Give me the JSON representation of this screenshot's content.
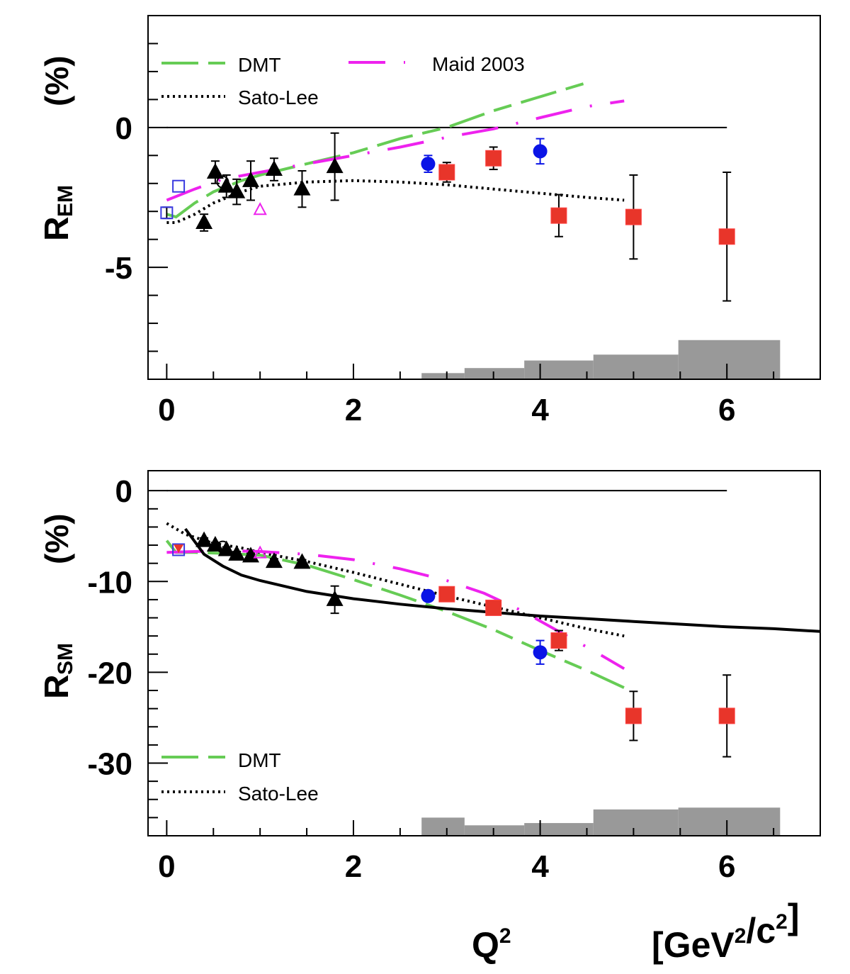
{
  "chart_data": [
    {
      "type": "scatter",
      "panel": "top",
      "ylabel_main": "R",
      "ylabel_sub": "EM",
      "ylabel_unit": "(%)",
      "xlabel": "",
      "xlim": [
        -0.2,
        7.0
      ],
      "ylim": [
        -9.0,
        4.0
      ],
      "xticks": [
        0,
        2,
        4,
        6
      ],
      "yticks_labeled": [
        0,
        -5
      ],
      "yticks_minor": [
        3,
        2,
        1,
        -1,
        -2,
        -3,
        -4,
        -6,
        -7,
        -8
      ],
      "zero_line": {
        "x_range": [
          0,
          6
        ]
      },
      "legend": [
        {
          "label": "DMT",
          "style": "green-dash",
          "position": "top-left"
        },
        {
          "label": "Sato-Lee",
          "style": "black-dot",
          "position": "top-left"
        },
        {
          "label": "Maid 2003",
          "style": "magenta-dashdot",
          "position": "top-center"
        }
      ],
      "curves": {
        "DMT": {
          "x": [
            0.0,
            0.1,
            0.3,
            0.5,
            0.8,
            1.0,
            1.5,
            2.0,
            2.5,
            3.0,
            3.5,
            4.0,
            4.5
          ],
          "y": [
            -3.1,
            -3.2,
            -2.7,
            -2.3,
            -1.9,
            -1.7,
            -1.3,
            -0.9,
            -0.4,
            0.0,
            0.6,
            1.1,
            1.6
          ]
        },
        "Sato-Lee": {
          "x": [
            0.0,
            0.1,
            0.3,
            0.5,
            0.8,
            1.0,
            1.5,
            2.0,
            2.5,
            3.0,
            3.5,
            4.0,
            4.5,
            4.9
          ],
          "y": [
            -3.4,
            -3.4,
            -3.1,
            -2.7,
            -2.3,
            -2.1,
            -1.95,
            -1.9,
            -1.95,
            -2.05,
            -2.2,
            -2.35,
            -2.5,
            -2.6
          ]
        },
        "Maid 2003": {
          "x": [
            0.0,
            0.3,
            0.6,
            1.0,
            1.5,
            2.0,
            2.5,
            3.0,
            3.5,
            4.0,
            4.5,
            4.9
          ],
          "y": [
            -2.6,
            -2.2,
            -1.85,
            -1.6,
            -1.3,
            -1.0,
            -0.7,
            -0.35,
            -0.05,
            0.35,
            0.75,
            0.95
          ]
        }
      },
      "points": [
        {
          "series": "black-triangle",
          "x": 0.4,
          "y": -3.4,
          "err": 0.3
        },
        {
          "series": "black-triangle",
          "x": 0.52,
          "y": -1.6,
          "err": 0.4
        },
        {
          "series": "black-triangle",
          "x": 0.64,
          "y": -2.1,
          "err": 0.4
        },
        {
          "series": "black-triangle",
          "x": 0.75,
          "y": -2.3,
          "err": 0.45
        },
        {
          "series": "black-triangle",
          "x": 0.9,
          "y": -1.9,
          "err": 0.7
        },
        {
          "series": "black-triangle",
          "x": 1.15,
          "y": -1.5,
          "err": 0.4
        },
        {
          "series": "black-triangle",
          "x": 1.45,
          "y": -2.2,
          "err": 0.65
        },
        {
          "series": "black-triangle",
          "x": 1.8,
          "y": -1.4,
          "err": 1.2
        },
        {
          "series": "blue-open-square",
          "x": 0.0,
          "y": -3.05,
          "err": 0.2
        },
        {
          "series": "blue-open-square",
          "x": 0.127,
          "y": -2.1,
          "err": 0.0
        },
        {
          "series": "black-open-circle",
          "x": 0.6,
          "y": -1.95,
          "err": 0.0
        },
        {
          "series": "magenta-open-triangle",
          "x": 1.0,
          "y": -2.95,
          "err": 0.0
        },
        {
          "series": "blue-circle",
          "x": 2.8,
          "y": -1.3,
          "err": 0.3
        },
        {
          "series": "blue-circle",
          "x": 4.0,
          "y": -0.85,
          "err": 0.45
        },
        {
          "series": "red-square",
          "x": 3.0,
          "y": -1.6,
          "err": 0.35
        },
        {
          "series": "red-square",
          "x": 3.5,
          "y": -1.1,
          "err": 0.4
        },
        {
          "series": "red-square",
          "x": 4.2,
          "y": -3.15,
          "err": 0.75
        },
        {
          "series": "red-square",
          "x": 5.0,
          "y": -3.2,
          "err": 1.5
        },
        {
          "series": "red-square",
          "x": 6.0,
          "y": -3.9,
          "err": 2.3
        }
      ],
      "systematic_bands": [
        {
          "x0": 2.73,
          "x1": 3.19,
          "height": 0.22
        },
        {
          "x0": 3.19,
          "x1": 3.83,
          "height": 0.4
        },
        {
          "x0": 3.83,
          "x1": 4.57,
          "height": 0.67
        },
        {
          "x0": 4.57,
          "x1": 5.48,
          "height": 0.88
        },
        {
          "x0": 5.48,
          "x1": 6.57,
          "height": 1.4
        }
      ]
    },
    {
      "type": "scatter",
      "panel": "bottom",
      "ylabel_main": "R",
      "ylabel_sub": "SM",
      "ylabel_unit": "(%)",
      "xlabel": "Q²",
      "xlabel_unit": "[GeV²/c²]",
      "xlim": [
        -0.2,
        7.0
      ],
      "ylim": [
        -38.0,
        2.2
      ],
      "xticks": [
        0,
        2,
        4,
        6
      ],
      "yticks_labeled": [
        0,
        -10,
        -20,
        -30
      ],
      "yticks_minor": [
        -2,
        -4,
        -6,
        -8,
        -12,
        -14,
        -16,
        -18,
        -22,
        -24,
        -26,
        -28,
        -32,
        -34,
        -36
      ],
      "zero_line": {
        "x_range": [
          0,
          6
        ]
      },
      "legend": [
        {
          "label": "DMT",
          "style": "green-dash",
          "position": "bottom-left"
        },
        {
          "label": "Sato-Lee",
          "style": "black-dot",
          "position": "bottom-left"
        }
      ],
      "curves": {
        "DMT": {
          "x": [
            0.0,
            0.1,
            0.3,
            0.6,
            1.0,
            1.5,
            2.0,
            2.5,
            3.0,
            3.5,
            4.0,
            4.5,
            4.9
          ],
          "y": [
            -5.5,
            -6.8,
            -6.8,
            -6.9,
            -7.1,
            -8.2,
            -9.8,
            -11.5,
            -13.3,
            -15.3,
            -17.6,
            -19.8,
            -21.7
          ]
        },
        "Sato-Lee": {
          "x": [
            0.0,
            0.2,
            0.5,
            0.8,
            1.0,
            1.5,
            2.0,
            2.5,
            3.0,
            3.5,
            4.0,
            4.5,
            4.9
          ],
          "y": [
            -3.6,
            -4.8,
            -5.8,
            -6.3,
            -6.8,
            -7.8,
            -9.0,
            -10.3,
            -11.6,
            -12.8,
            -14.0,
            -15.2,
            -16.0
          ]
        },
        "Maid 2003": {
          "x": [
            0.0,
            0.3,
            0.6,
            1.0,
            1.5,
            2.0,
            2.5,
            3.0,
            3.4,
            3.8,
            4.2,
            4.6,
            4.9
          ],
          "y": [
            -6.8,
            -6.7,
            -6.6,
            -6.7,
            -7.0,
            -7.6,
            -8.6,
            -9.9,
            -11.3,
            -13.2,
            -15.5,
            -17.8,
            -19.6
          ]
        },
        "solid": {
          "x": [
            0.2,
            0.4,
            0.6,
            0.8,
            1.0,
            1.5,
            2.0,
            2.5,
            3.0,
            3.5,
            4.0,
            4.5,
            5.0,
            5.5,
            6.0,
            6.5,
            7.0
          ],
          "y": [
            -4.2,
            -7.0,
            -8.3,
            -9.3,
            -9.9,
            -11.1,
            -11.9,
            -12.5,
            -13.0,
            -13.4,
            -13.8,
            -14.1,
            -14.4,
            -14.7,
            -15.0,
            -15.2,
            -15.5
          ]
        }
      },
      "points": [
        {
          "series": "black-triangle",
          "x": 0.4,
          "y": -5.5,
          "err": 0.3
        },
        {
          "series": "black-triangle",
          "x": 0.52,
          "y": -6.0,
          "err": 0.3
        },
        {
          "series": "black-triangle",
          "x": 0.64,
          "y": -6.5,
          "err": 0.3
        },
        {
          "series": "black-triangle",
          "x": 0.75,
          "y": -7.0,
          "err": 0.3
        },
        {
          "series": "black-triangle",
          "x": 0.9,
          "y": -7.2,
          "err": 0.3
        },
        {
          "series": "black-triangle",
          "x": 1.15,
          "y": -7.8,
          "err": 0.3
        },
        {
          "series": "black-triangle",
          "x": 1.45,
          "y": -7.9,
          "err": 0.3
        },
        {
          "series": "black-triangle",
          "x": 1.8,
          "y": -12.0,
          "err": 1.5
        },
        {
          "series": "blue-open-square",
          "x": 0.127,
          "y": -6.5,
          "err": 0.0
        },
        {
          "series": "red-inverted-triangle",
          "x": 0.127,
          "y": -6.4,
          "err": 0.0
        },
        {
          "series": "black-open-circle",
          "x": 0.6,
          "y": -6.2,
          "err": 0.0
        },
        {
          "series": "magenta-open-triangle",
          "x": 1.0,
          "y": -6.9,
          "err": 0.0
        },
        {
          "series": "blue-circle",
          "x": 2.8,
          "y": -11.6,
          "err": 0.3
        },
        {
          "series": "blue-circle",
          "x": 4.0,
          "y": -17.8,
          "err": 1.3
        },
        {
          "series": "red-square",
          "x": 3.0,
          "y": -11.4,
          "err": 0.4
        },
        {
          "series": "red-square",
          "x": 3.5,
          "y": -12.9,
          "err": 0.4
        },
        {
          "series": "red-square",
          "x": 4.2,
          "y": -16.5,
          "err": 1.1
        },
        {
          "series": "red-square",
          "x": 5.0,
          "y": -24.8,
          "err": 2.7
        },
        {
          "series": "red-square",
          "x": 6.0,
          "y": -24.8,
          "err": 4.5
        }
      ],
      "systematic_bands": [
        {
          "x0": 2.73,
          "x1": 3.19,
          "height": 2.0
        },
        {
          "x0": 3.19,
          "x1": 3.83,
          "height": 1.15
        },
        {
          "x0": 3.83,
          "x1": 4.57,
          "height": 1.4
        },
        {
          "x0": 4.57,
          "x1": 5.48,
          "height": 2.9
        },
        {
          "x0": 5.48,
          "x1": 6.57,
          "height": 3.1
        }
      ]
    }
  ],
  "colors": {
    "dmt": "#66cc55",
    "sato_lee": "#000000",
    "maid": "#ee22ee",
    "red_square": "#e8352a",
    "blue_circle": "#0a14e6",
    "blue_open_square": "#3a3ae0",
    "band": "#999999"
  }
}
